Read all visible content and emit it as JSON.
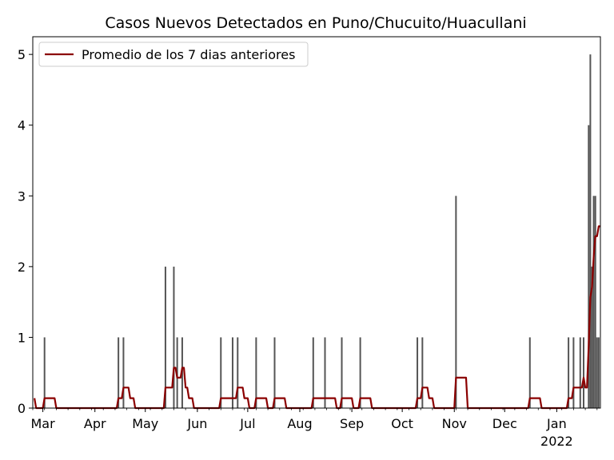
{
  "chart_data": {
    "type": "bar",
    "title": "Casos Nuevos Detectados en Puno/Chucuito/Huacullani",
    "xlabel": "",
    "ylabel": "",
    "x_range": [
      "2021-02-23",
      "2022-01-27"
    ],
    "ylim": [
      0,
      5.25
    ],
    "y_ticks": [
      0,
      1,
      2,
      3,
      4,
      5
    ],
    "x_ticks": [
      {
        "date": "2021-03-01",
        "label": "Mar"
      },
      {
        "date": "2021-04-01",
        "label": "Apr"
      },
      {
        "date": "2021-05-01",
        "label": "May"
      },
      {
        "date": "2021-06-01",
        "label": "Jun"
      },
      {
        "date": "2021-07-01",
        "label": "Jul"
      },
      {
        "date": "2021-08-01",
        "label": "Aug"
      },
      {
        "date": "2021-09-01",
        "label": "Sep"
      },
      {
        "date": "2021-10-01",
        "label": "Oct"
      },
      {
        "date": "2021-11-01",
        "label": "Nov"
      },
      {
        "date": "2021-12-01",
        "label": "Dec"
      },
      {
        "date": "2022-01-01",
        "label": "Jan",
        "sublabel": "2022"
      }
    ],
    "grid": false,
    "legend_position": "top-left",
    "legend": {
      "label": "Promedio de los 7 dias anteriores",
      "color": "#8b0000"
    },
    "bar_color": "#555555",
    "line_color": "#8b0000",
    "series": [
      {
        "kind": "bar",
        "points": [
          [
            "2021-03-02",
            1
          ],
          [
            "2021-04-15",
            1
          ],
          [
            "2021-04-18",
            1
          ],
          [
            "2021-05-13",
            2
          ],
          [
            "2021-05-18",
            2
          ],
          [
            "2021-05-20",
            1
          ],
          [
            "2021-05-23",
            1
          ],
          [
            "2021-06-15",
            1
          ],
          [
            "2021-06-22",
            1
          ],
          [
            "2021-06-25",
            1
          ],
          [
            "2021-07-06",
            1
          ],
          [
            "2021-07-17",
            1
          ],
          [
            "2021-08-09",
            1
          ],
          [
            "2021-08-16",
            1
          ],
          [
            "2021-08-26",
            1
          ],
          [
            "2021-09-06",
            1
          ],
          [
            "2021-10-10",
            1
          ],
          [
            "2021-10-13",
            1
          ],
          [
            "2021-11-02",
            3
          ],
          [
            "2021-12-16",
            1
          ],
          [
            "2022-01-08",
            1
          ],
          [
            "2022-01-11",
            1
          ],
          [
            "2022-01-15",
            1
          ],
          [
            "2022-01-17",
            1
          ],
          [
            "2022-01-20",
            4
          ],
          [
            "2022-01-21",
            5
          ],
          [
            "2022-01-22",
            2
          ],
          [
            "2022-01-23",
            3
          ],
          [
            "2022-01-24",
            3
          ],
          [
            "2022-01-25",
            1
          ],
          [
            "2022-01-26",
            1
          ]
        ]
      },
      {
        "kind": "line",
        "name": "Promedio de los 7 dias anteriores",
        "points": [
          [
            "2021-02-24",
            0.14
          ],
          [
            "2021-02-25",
            0
          ],
          [
            "2021-03-01",
            0
          ],
          [
            "2021-03-02",
            0.14
          ],
          [
            "2021-03-08",
            0.14
          ],
          [
            "2021-03-09",
            0
          ],
          [
            "2021-04-14",
            0
          ],
          [
            "2021-04-15",
            0.14
          ],
          [
            "2021-04-17",
            0.14
          ],
          [
            "2021-04-18",
            0.29
          ],
          [
            "2021-04-21",
            0.29
          ],
          [
            "2021-04-22",
            0.14
          ],
          [
            "2021-04-24",
            0.14
          ],
          [
            "2021-04-25",
            0
          ],
          [
            "2021-05-12",
            0
          ],
          [
            "2021-05-13",
            0.29
          ],
          [
            "2021-05-17",
            0.29
          ],
          [
            "2021-05-18",
            0.57
          ],
          [
            "2021-05-19",
            0.57
          ],
          [
            "2021-05-20",
            0.43
          ],
          [
            "2021-05-22",
            0.43
          ],
          [
            "2021-05-23",
            0.57
          ],
          [
            "2021-05-24",
            0.57
          ],
          [
            "2021-05-25",
            0.29
          ],
          [
            "2021-05-26",
            0.29
          ],
          [
            "2021-05-27",
            0.14
          ],
          [
            "2021-05-29",
            0.14
          ],
          [
            "2021-05-30",
            0
          ],
          [
            "2021-06-14",
            0
          ],
          [
            "2021-06-15",
            0.14
          ],
          [
            "2021-06-24",
            0.14
          ],
          [
            "2021-06-25",
            0.29
          ],
          [
            "2021-06-28",
            0.29
          ],
          [
            "2021-06-29",
            0.14
          ],
          [
            "2021-07-01",
            0.14
          ],
          [
            "2021-07-02",
            0
          ],
          [
            "2021-07-05",
            0
          ],
          [
            "2021-07-06",
            0.14
          ],
          [
            "2021-07-12",
            0.14
          ],
          [
            "2021-07-13",
            0
          ],
          [
            "2021-07-16",
            0
          ],
          [
            "2021-07-17",
            0.14
          ],
          [
            "2021-07-23",
            0.14
          ],
          [
            "2021-07-24",
            0
          ],
          [
            "2021-08-08",
            0
          ],
          [
            "2021-08-09",
            0.14
          ],
          [
            "2021-08-22",
            0.14
          ],
          [
            "2021-08-23",
            0
          ],
          [
            "2021-08-25",
            0
          ],
          [
            "2021-08-26",
            0.14
          ],
          [
            "2021-09-01",
            0.14
          ],
          [
            "2021-09-02",
            0
          ],
          [
            "2021-09-05",
            0
          ],
          [
            "2021-09-06",
            0.14
          ],
          [
            "2021-09-12",
            0.14
          ],
          [
            "2021-09-13",
            0
          ],
          [
            "2021-10-09",
            0
          ],
          [
            "2021-10-10",
            0.14
          ],
          [
            "2021-10-12",
            0.14
          ],
          [
            "2021-10-13",
            0.29
          ],
          [
            "2021-10-16",
            0.29
          ],
          [
            "2021-10-17",
            0.14
          ],
          [
            "2021-10-19",
            0.14
          ],
          [
            "2021-10-20",
            0
          ],
          [
            "2021-11-01",
            0
          ],
          [
            "2021-11-02",
            0.43
          ],
          [
            "2021-11-08",
            0.43
          ],
          [
            "2021-11-09",
            0
          ],
          [
            "2021-12-15",
            0
          ],
          [
            "2021-12-16",
            0.14
          ],
          [
            "2021-12-22",
            0.14
          ],
          [
            "2021-12-23",
            0
          ],
          [
            "2022-01-07",
            0
          ],
          [
            "2022-01-08",
            0.14
          ],
          [
            "2022-01-10",
            0.14
          ],
          [
            "2022-01-11",
            0.29
          ],
          [
            "2022-01-16",
            0.29
          ],
          [
            "2022-01-17",
            0.43
          ],
          [
            "2022-01-18",
            0.29
          ],
          [
            "2022-01-19",
            0.29
          ],
          [
            "2022-01-20",
            0.86
          ],
          [
            "2022-01-21",
            1.57
          ],
          [
            "2022-01-22",
            1.71
          ],
          [
            "2022-01-23",
            2.14
          ],
          [
            "2022-01-24",
            2.43
          ],
          [
            "2022-01-25",
            2.43
          ],
          [
            "2022-01-26",
            2.57
          ],
          [
            "2022-01-27",
            2.57
          ]
        ]
      }
    ]
  }
}
